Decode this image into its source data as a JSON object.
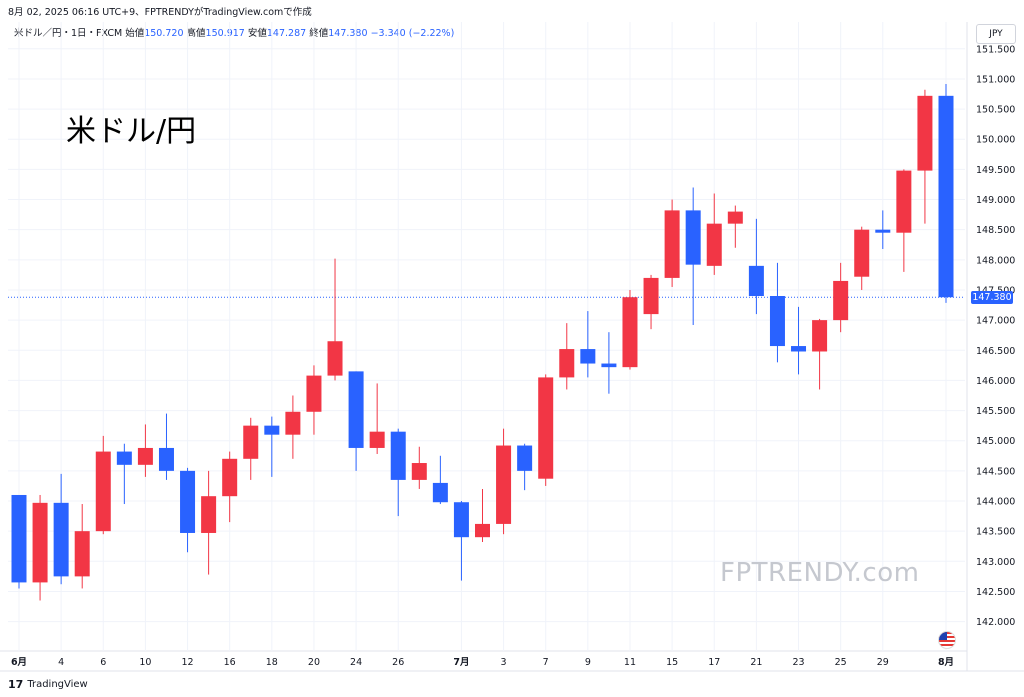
{
  "header": {
    "text": "8月 02, 2025 06:16 UTC+9、FPTRENDYがTradingView.comで作成"
  },
  "legend": {
    "symbol": "米ドル／円・1日・FXCM",
    "open_label": "始値",
    "open": "150.720",
    "high_label": "高値",
    "high": "150.917",
    "low_label": "安値",
    "low": "147.287",
    "close_label": "終値",
    "close": "147.380",
    "change": "−3.340 (−2.22%)"
  },
  "currency_badge": "JPY",
  "big_title": "米ドル/円",
  "watermark": "FPTRENDY.com",
  "footer": {
    "logo": "17",
    "brand": "TradingView"
  },
  "price_tag": "147.380",
  "colors": {
    "up": "#f23645",
    "down": "#2962ff",
    "grid": "#f0f3fa",
    "last_price_line": "#2962ff"
  },
  "chart_data": {
    "type": "candlestick",
    "x_tick_labels": [
      "6月",
      "4",
      "6",
      "10",
      "12",
      "16",
      "18",
      "20",
      "24",
      "26",
      "7月",
      "3",
      "7",
      "9",
      "11",
      "15",
      "17",
      "21",
      "23",
      "25",
      "29",
      "8月"
    ],
    "y_tick_labels": [
      "151.500",
      "151.000",
      "150.500",
      "150.000",
      "149.500",
      "149.000",
      "148.500",
      "148.000",
      "147.500",
      "147.000",
      "146.500",
      "146.000",
      "145.500",
      "145.000",
      "144.500",
      "144.000",
      "143.500",
      "143.000",
      "142.500",
      "142.000"
    ],
    "ylim": [
      141.5,
      151.7
    ],
    "last_price": 147.38,
    "candles": [
      {
        "o": 144.1,
        "h": 144.1,
        "l": 142.55,
        "c": 142.65
      },
      {
        "o": 142.65,
        "h": 144.1,
        "l": 142.35,
        "c": 143.97
      },
      {
        "o": 143.97,
        "h": 144.45,
        "l": 142.62,
        "c": 142.75
      },
      {
        "o": 142.75,
        "h": 143.95,
        "l": 142.55,
        "c": 143.5
      },
      {
        "o": 143.5,
        "h": 145.08,
        "l": 143.45,
        "c": 144.82
      },
      {
        "o": 144.82,
        "h": 144.95,
        "l": 143.95,
        "c": 144.6
      },
      {
        "o": 144.6,
        "h": 145.27,
        "l": 144.4,
        "c": 144.88
      },
      {
        "o": 144.88,
        "h": 145.45,
        "l": 144.35,
        "c": 144.5
      },
      {
        "o": 144.5,
        "h": 144.55,
        "l": 143.15,
        "c": 143.47
      },
      {
        "o": 143.47,
        "h": 144.5,
        "l": 142.78,
        "c": 144.08
      },
      {
        "o": 144.08,
        "h": 144.82,
        "l": 143.65,
        "c": 144.7
      },
      {
        "o": 144.7,
        "h": 145.38,
        "l": 144.35,
        "c": 145.25
      },
      {
        "o": 145.25,
        "h": 145.4,
        "l": 144.4,
        "c": 145.1
      },
      {
        "o": 145.1,
        "h": 145.75,
        "l": 144.7,
        "c": 145.48
      },
      {
        "o": 145.48,
        "h": 146.25,
        "l": 145.1,
        "c": 146.08
      },
      {
        "o": 146.08,
        "h": 148.02,
        "l": 146.0,
        "c": 146.65
      },
      {
        "o": 146.15,
        "h": 146.15,
        "l": 144.5,
        "c": 144.88
      },
      {
        "o": 144.88,
        "h": 145.95,
        "l": 144.78,
        "c": 145.15
      },
      {
        "o": 145.15,
        "h": 145.2,
        "l": 143.75,
        "c": 144.35
      },
      {
        "o": 144.35,
        "h": 144.9,
        "l": 144.2,
        "c": 144.63
      },
      {
        "o": 144.3,
        "h": 144.75,
        "l": 143.95,
        "c": 143.98
      },
      {
        "o": 143.98,
        "h": 144.0,
        "l": 142.68,
        "c": 143.4
      },
      {
        "o": 143.4,
        "h": 144.2,
        "l": 143.32,
        "c": 143.62
      },
      {
        "o": 143.62,
        "h": 145.2,
        "l": 143.45,
        "c": 144.92
      },
      {
        "o": 144.92,
        "h": 144.95,
        "l": 144.18,
        "c": 144.5
      },
      {
        "o": 144.37,
        "h": 146.1,
        "l": 144.25,
        "c": 146.05
      },
      {
        "o": 146.05,
        "h": 146.95,
        "l": 145.85,
        "c": 146.52
      },
      {
        "o": 146.52,
        "h": 147.15,
        "l": 146.05,
        "c": 146.28
      },
      {
        "o": 146.28,
        "h": 146.8,
        "l": 145.78,
        "c": 146.22
      },
      {
        "o": 146.22,
        "h": 147.5,
        "l": 146.18,
        "c": 147.38
      },
      {
        "o": 147.1,
        "h": 147.75,
        "l": 146.85,
        "c": 147.7
      },
      {
        "o": 147.7,
        "h": 149.0,
        "l": 147.55,
        "c": 148.82
      },
      {
        "o": 148.82,
        "h": 149.2,
        "l": 146.92,
        "c": 147.92
      },
      {
        "o": 147.9,
        "h": 149.1,
        "l": 147.75,
        "c": 148.6
      },
      {
        "o": 148.6,
        "h": 148.9,
        "l": 148.2,
        "c": 148.8
      },
      {
        "o": 147.9,
        "h": 148.68,
        "l": 147.1,
        "c": 147.4
      },
      {
        "o": 147.4,
        "h": 147.95,
        "l": 146.3,
        "c": 146.57
      },
      {
        "o": 146.57,
        "h": 147.22,
        "l": 146.1,
        "c": 146.48
      },
      {
        "o": 146.48,
        "h": 147.02,
        "l": 145.85,
        "c": 147.0
      },
      {
        "o": 147.0,
        "h": 147.95,
        "l": 146.8,
        "c": 147.65
      },
      {
        "o": 147.72,
        "h": 148.55,
        "l": 147.5,
        "c": 148.5
      },
      {
        "o": 148.5,
        "h": 148.82,
        "l": 148.18,
        "c": 148.45
      },
      {
        "o": 148.45,
        "h": 149.5,
        "l": 147.8,
        "c": 149.48
      },
      {
        "o": 149.48,
        "h": 150.82,
        "l": 148.6,
        "c": 150.72
      },
      {
        "o": 150.72,
        "h": 150.917,
        "l": 147.287,
        "c": 147.38
      }
    ]
  }
}
